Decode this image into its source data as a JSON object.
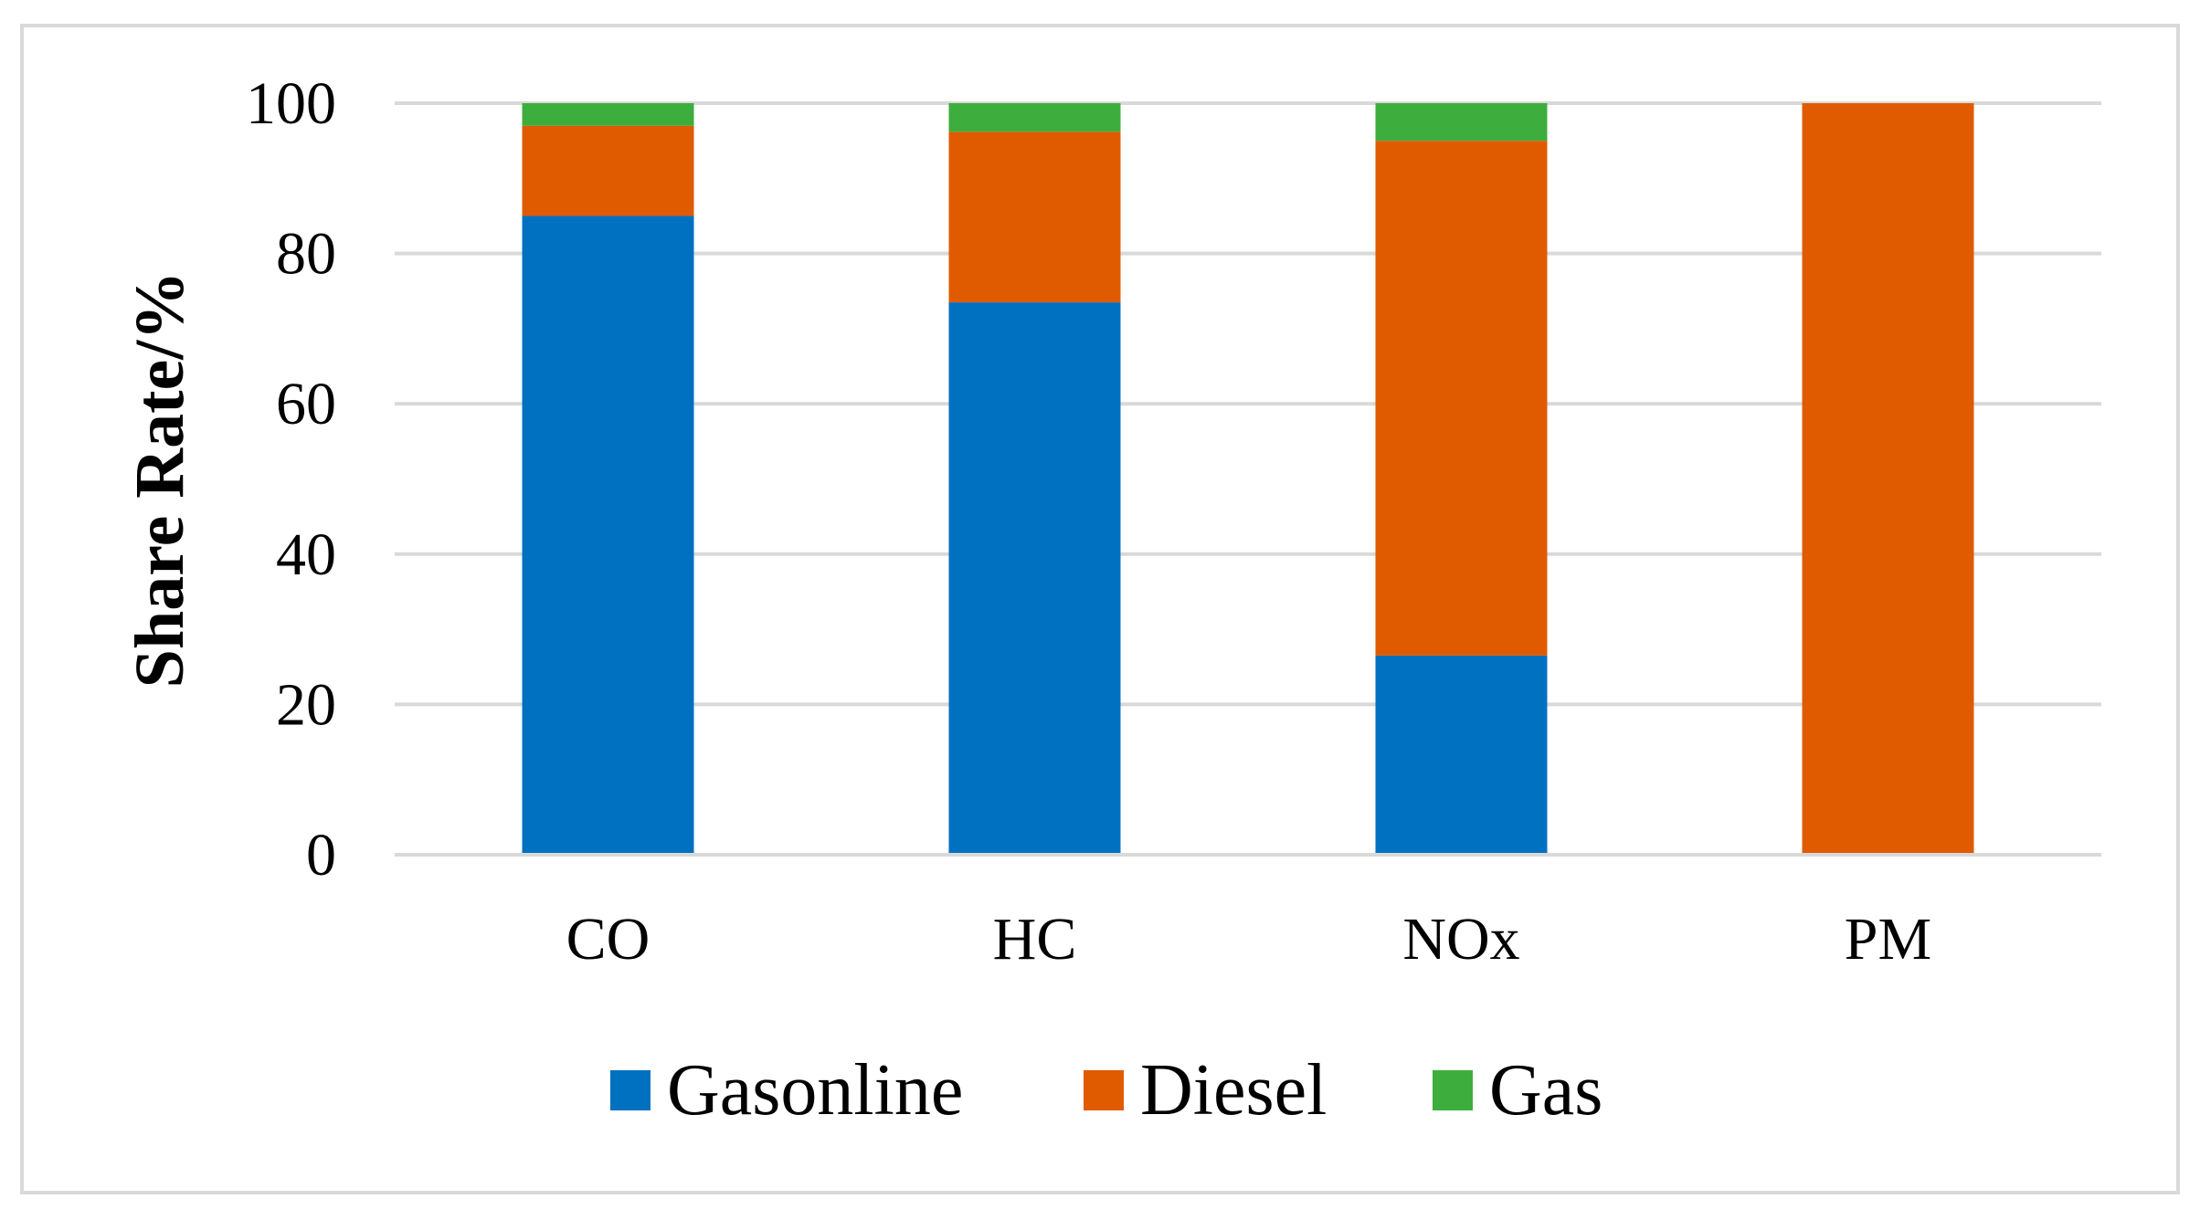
{
  "chart_data": {
    "type": "bar",
    "stacked": true,
    "categories": [
      "CO",
      "HC",
      "NOx",
      "PM"
    ],
    "series": [
      {
        "name": "Gasonline",
        "color": "#0070c0",
        "values": [
          85,
          73.5,
          26.5,
          0
        ]
      },
      {
        "name": "Diesel",
        "color": "#e05a00",
        "values": [
          12,
          22.7,
          68.5,
          100
        ]
      },
      {
        "name": "Gas",
        "color": "#3dae3d",
        "values": [
          3,
          3.8,
          5,
          0
        ]
      }
    ],
    "ylabel": "Share Rate/%",
    "ylim": [
      0,
      100
    ],
    "yticks": [
      0,
      20,
      40,
      60,
      80,
      100
    ],
    "grid": true,
    "legend": "bottom"
  }
}
